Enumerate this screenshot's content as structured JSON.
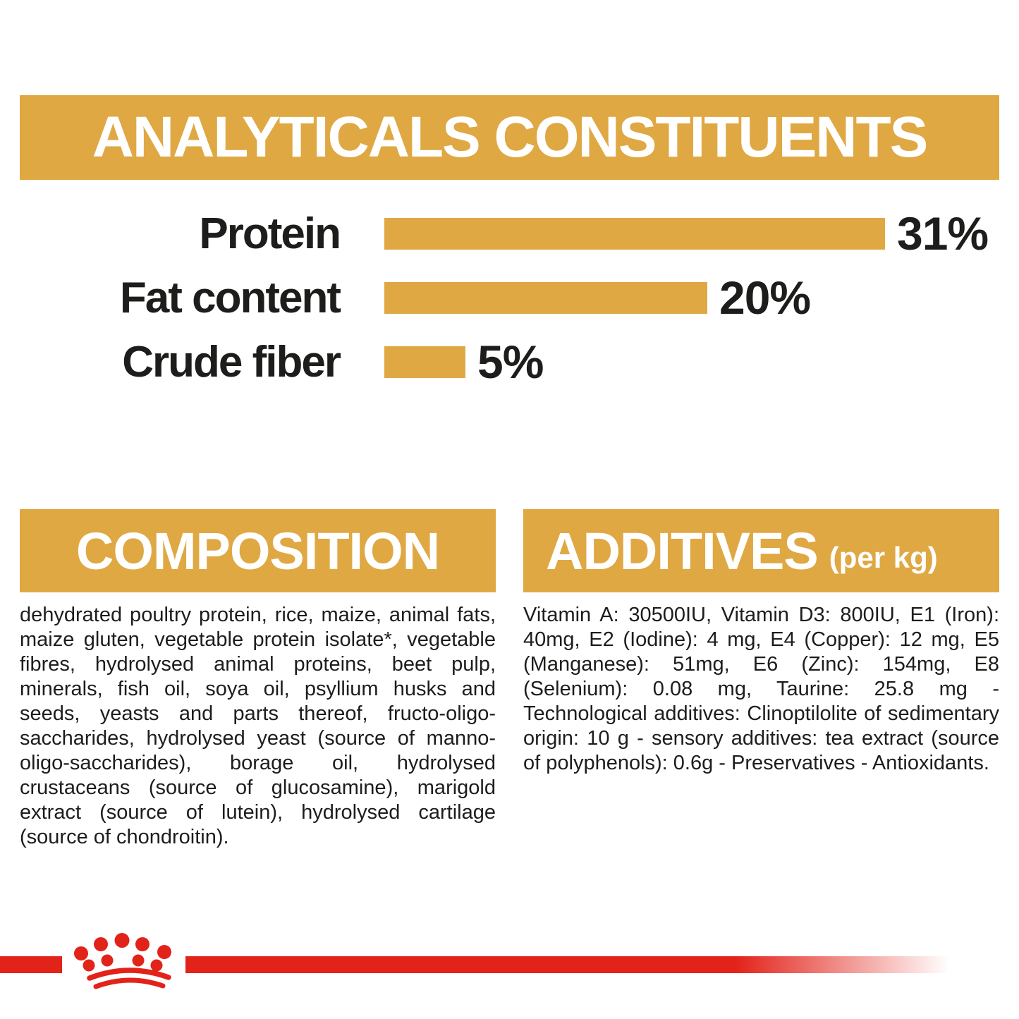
{
  "colors": {
    "gold": "#DFA843",
    "red": "#E2231A",
    "text": "#1D1D1B",
    "background": "#FFFFFF",
    "header_text": "#FFFFFF"
  },
  "analyticals": {
    "title": "ANALYTICALS CONSTITUENTS"
  },
  "chart_data": {
    "type": "bar",
    "orientation": "horizontal",
    "title": "ANALYTICALS CONSTITUENTS",
    "categories": [
      "Protein",
      "Fat content",
      "Crude fiber"
    ],
    "values": [
      31,
      20,
      5
    ],
    "value_labels": [
      "31%",
      "20%",
      "5%"
    ],
    "unit": "%",
    "xlim": [
      0,
      31
    ],
    "bar_color": "#DFA843",
    "grid": false,
    "legend": false
  },
  "composition": {
    "title": "COMPOSITION",
    "body": "dehydrated poultry protein, rice, maize, animal fats, maize gluten, vegetable protein isolate*, vegetable fibres, hydrolysed animal proteins, beet pulp, minerals, fish oil, soya oil, psyllium husks and seeds, yeasts and parts thereof, fructo-oligo-saccharides, hydrolysed yeast (source of manno-oligo-saccharides), borage oil, hydrolysed crustaceans (source of glucosamine), marigold extract (source of lutein), hydrolysed cartilage (source of chondroitin)."
  },
  "additives": {
    "title": "ADDITIVES",
    "suffix": "(per kg)",
    "body": "Vitamin A: 30500IU, Vitamin D3: 800IU, E1 (Iron): 40mg, E2 (Iodine): 4 mg, E4 (Copper): 12 mg, E5 (Manganese): 51mg, E6 (Zinc): 154mg, E8 (Selenium): 0.08 mg, Taurine: 25.8 mg - Technological additives: Clinoptilolite of sedimentary origin: 10 g - sensory additives: tea extract (source of polyphenols): 0.6g - Preservatives - Antioxidants."
  },
  "footer": {
    "logo": "royal-canin-crown"
  }
}
